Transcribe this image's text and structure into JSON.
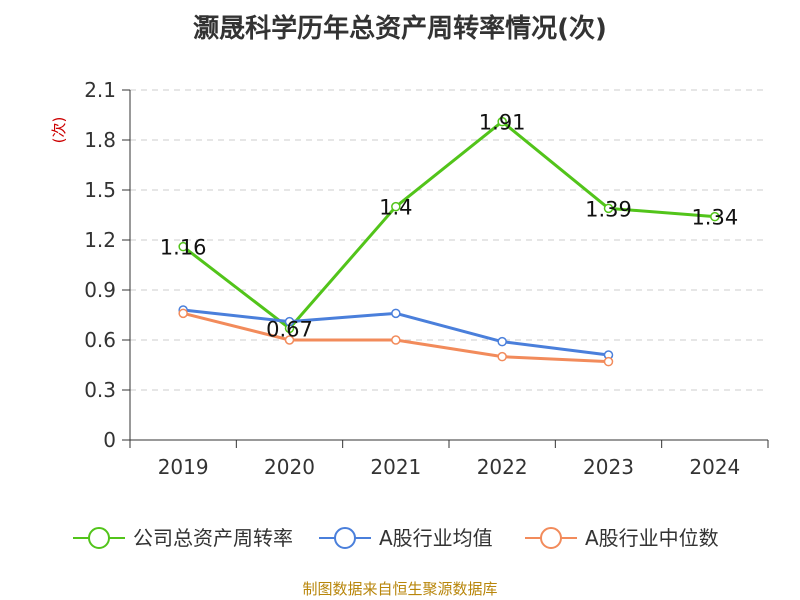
{
  "chart_data": {
    "type": "line",
    "title": "灏晟科学历年总资产周转率情况(次)",
    "ylabel": "(次)",
    "categories": [
      "2019",
      "2020",
      "2021",
      "2022",
      "2023",
      "2024"
    ],
    "ylim": [
      0,
      2.1
    ],
    "yticks": [
      "0",
      "0.3",
      "0.6",
      "0.9",
      "1.2",
      "1.5",
      "1.8",
      "2.1"
    ],
    "grid": true,
    "legend_position": "bottom",
    "series": [
      {
        "name": "公司总资产周转率",
        "color": "#52c41a",
        "values": [
          1.16,
          0.67,
          1.4,
          1.91,
          1.39,
          1.34
        ],
        "labels": [
          "1.16",
          "0.67",
          "1.4",
          "1.91",
          "1.39",
          "1.34"
        ]
      },
      {
        "name": "A股行业均值",
        "color": "#4a7fdb",
        "values": [
          0.78,
          0.71,
          0.76,
          0.59,
          0.51,
          null
        ]
      },
      {
        "name": "A股行业中位数",
        "color": "#f28b5b",
        "values": [
          0.76,
          0.6,
          0.6,
          0.5,
          0.47,
          null
        ]
      }
    ]
  },
  "source_note": "制图数据来自恒生聚源数据库"
}
